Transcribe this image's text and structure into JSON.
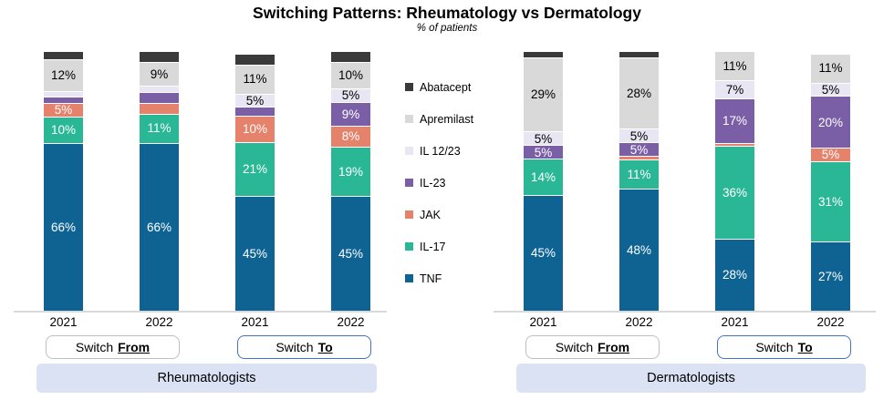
{
  "title": "Switching Patterns: Rheumatology vs Dermatology",
  "subtitle": "% of patients",
  "chart_data": {
    "type": "bar",
    "stacked": true,
    "value_unit": "% of patients",
    "legend_position": "middle-left-of-right-panel",
    "legend": [
      {
        "label": "Abatacept",
        "color": "#3a3a3a",
        "text_color": "#ffffff"
      },
      {
        "label": "Apremilast",
        "color": "#d9d9d9",
        "text_color": "#000000"
      },
      {
        "label": "IL 12/23",
        "color": "#e9e6f4",
        "text_color": "#000000"
      },
      {
        "label": "IL-23",
        "color": "#7a5ea6",
        "text_color": "#ffffff"
      },
      {
        "label": "JAK",
        "color": "#e5826b",
        "text_color": "#ffffff"
      },
      {
        "label": "IL-17",
        "color": "#29b795",
        "text_color": "#ffffff"
      },
      {
        "label": "TNF",
        "color": "#0e6392",
        "text_color": "#ffffff"
      }
    ],
    "stack_order_bottom_to_top": [
      "TNF",
      "IL-17",
      "JAK",
      "IL-23",
      "IL 12/23",
      "Apremilast",
      "Abatacept"
    ],
    "groups": [
      {
        "label": "Rheumatologists",
        "subgroups": [
          {
            "prefix": "Switch",
            "emphasis": "From",
            "bars": [
              {
                "year": "2021",
                "segments": [
                  {
                    "drug": "TNF",
                    "value": 66,
                    "label": "66%"
                  },
                  {
                    "drug": "IL-17",
                    "value": 10,
                    "label": "10%"
                  },
                  {
                    "drug": "JAK",
                    "value": 5,
                    "label": "5%"
                  },
                  {
                    "drug": "IL-23",
                    "value": 2,
                    "label": ""
                  },
                  {
                    "drug": "IL 12/23",
                    "value": 2,
                    "label": ""
                  },
                  {
                    "drug": "Apremilast",
                    "value": 12,
                    "label": "12%"
                  },
                  {
                    "drug": "Abatacept",
                    "value": 3,
                    "label": ""
                  }
                ]
              },
              {
                "year": "2022",
                "segments": [
                  {
                    "drug": "TNF",
                    "value": 66,
                    "label": "66%"
                  },
                  {
                    "drug": "IL-17",
                    "value": 11,
                    "label": "11%"
                  },
                  {
                    "drug": "JAK",
                    "value": 4,
                    "label": ""
                  },
                  {
                    "drug": "IL-23",
                    "value": 4,
                    "label": ""
                  },
                  {
                    "drug": "IL 12/23",
                    "value": 2,
                    "label": ""
                  },
                  {
                    "drug": "Apremilast",
                    "value": 9,
                    "label": "9%"
                  },
                  {
                    "drug": "Abatacept",
                    "value": 4,
                    "label": ""
                  }
                ]
              }
            ]
          },
          {
            "prefix": "Switch",
            "emphasis": "To",
            "bars": [
              {
                "year": "2021",
                "segments": [
                  {
                    "drug": "TNF",
                    "value": 45,
                    "label": "45%"
                  },
                  {
                    "drug": "IL-17",
                    "value": 21,
                    "label": "21%"
                  },
                  {
                    "drug": "JAK",
                    "value": 10,
                    "label": "10%"
                  },
                  {
                    "drug": "IL-23",
                    "value": 3,
                    "label": ""
                  },
                  {
                    "drug": "IL 12/23",
                    "value": 5,
                    "label": "5%"
                  },
                  {
                    "drug": "Apremilast",
                    "value": 11,
                    "label": "11%"
                  },
                  {
                    "drug": "Abatacept",
                    "value": 4,
                    "label": ""
                  }
                ]
              },
              {
                "year": "2022",
                "segments": [
                  {
                    "drug": "TNF",
                    "value": 45,
                    "label": "45%"
                  },
                  {
                    "drug": "IL-17",
                    "value": 19,
                    "label": "19%"
                  },
                  {
                    "drug": "JAK",
                    "value": 8,
                    "label": "8%"
                  },
                  {
                    "drug": "IL-23",
                    "value": 9,
                    "label": "9%"
                  },
                  {
                    "drug": "IL 12/23",
                    "value": 5,
                    "label": "5%"
                  },
                  {
                    "drug": "Apremilast",
                    "value": 10,
                    "label": "10%"
                  },
                  {
                    "drug": "Abatacept",
                    "value": 4,
                    "label": ""
                  }
                ]
              }
            ]
          }
        ]
      },
      {
        "label": "Dermatologists",
        "subgroups": [
          {
            "prefix": "Switch",
            "emphasis": "From",
            "bars": [
              {
                "year": "2021",
                "segments": [
                  {
                    "drug": "TNF",
                    "value": 45,
                    "label": "45%"
                  },
                  {
                    "drug": "IL-17",
                    "value": 14,
                    "label": "14%"
                  },
                  {
                    "drug": "IL-23",
                    "value": 5,
                    "label": "5%"
                  },
                  {
                    "drug": "IL 12/23",
                    "value": 5,
                    "label": "5%"
                  },
                  {
                    "drug": "Apremilast",
                    "value": 29,
                    "label": "29%"
                  },
                  {
                    "drug": "Abatacept",
                    "value": 2,
                    "label": ""
                  }
                ]
              },
              {
                "year": "2022",
                "segments": [
                  {
                    "drug": "TNF",
                    "value": 48,
                    "label": "48%"
                  },
                  {
                    "drug": "IL-17",
                    "value": 11,
                    "label": "11%"
                  },
                  {
                    "drug": "JAK",
                    "value": 1,
                    "label": ""
                  },
                  {
                    "drug": "IL-23",
                    "value": 5,
                    "label": "5%"
                  },
                  {
                    "drug": "IL 12/23",
                    "value": 5,
                    "label": "5%"
                  },
                  {
                    "drug": "Apremilast",
                    "value": 28,
                    "label": "28%"
                  },
                  {
                    "drug": "Abatacept",
                    "value": 2,
                    "label": ""
                  }
                ]
              }
            ]
          },
          {
            "prefix": "Switch",
            "emphasis": "To",
            "bars": [
              {
                "year": "2021",
                "segments": [
                  {
                    "drug": "TNF",
                    "value": 28,
                    "label": "28%"
                  },
                  {
                    "drug": "IL-17",
                    "value": 36,
                    "label": "36%"
                  },
                  {
                    "drug": "JAK",
                    "value": 1,
                    "label": ""
                  },
                  {
                    "drug": "IL-23",
                    "value": 17,
                    "label": "17%"
                  },
                  {
                    "drug": "IL 12/23",
                    "value": 7,
                    "label": "7%"
                  },
                  {
                    "drug": "Apremilast",
                    "value": 11,
                    "label": "11%"
                  }
                ]
              },
              {
                "year": "2022",
                "segments": [
                  {
                    "drug": "TNF",
                    "value": 27,
                    "label": "27%"
                  },
                  {
                    "drug": "IL-17",
                    "value": 31,
                    "label": "31%"
                  },
                  {
                    "drug": "JAK",
                    "value": 5,
                    "label": "5%"
                  },
                  {
                    "drug": "IL-23",
                    "value": 20,
                    "label": "20%"
                  },
                  {
                    "drug": "IL 12/23",
                    "value": 5,
                    "label": "5%"
                  },
                  {
                    "drug": "Apremilast",
                    "value": 11,
                    "label": "11%"
                  }
                ]
              }
            ]
          }
        ]
      }
    ]
  }
}
